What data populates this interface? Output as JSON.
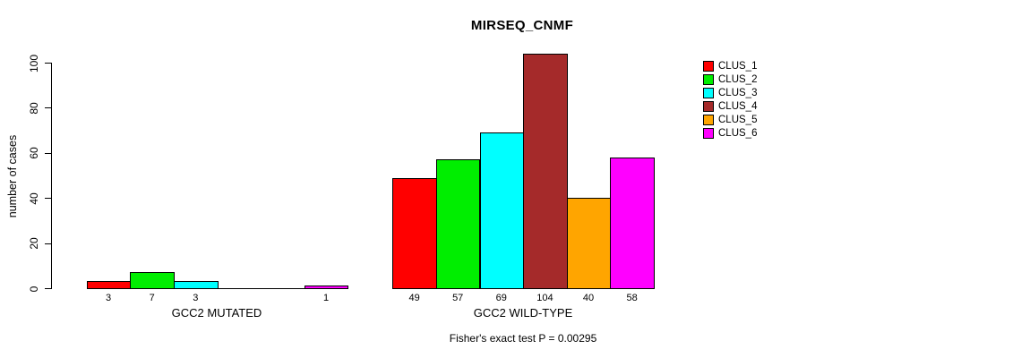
{
  "chart_data": {
    "type": "bar",
    "title": "MIRSEQ_CNMF",
    "ylabel": "number of cases",
    "ylim": [
      0,
      100
    ],
    "yticks": [
      0,
      20,
      40,
      60,
      80,
      100
    ],
    "grid": false,
    "legend_position": "right",
    "series": [
      {
        "name": "CLUS_1",
        "color": "#ff0000"
      },
      {
        "name": "CLUS_2",
        "color": "#00ee00"
      },
      {
        "name": "CLUS_3",
        "color": "#00ffff"
      },
      {
        "name": "CLUS_4",
        "color": "#a52a2a"
      },
      {
        "name": "CLUS_5",
        "color": "#ffa500"
      },
      {
        "name": "CLUS_6",
        "color": "#ff00ff"
      }
    ],
    "groups": [
      {
        "label": "GCC2 MUTATED",
        "values": [
          3,
          7,
          3,
          0,
          0,
          1
        ]
      },
      {
        "label": "GCC2 WILD-TYPE",
        "values": [
          49,
          57,
          69,
          104,
          40,
          58
        ]
      }
    ],
    "footnote": "Fisher's exact test P = 0.00295"
  }
}
